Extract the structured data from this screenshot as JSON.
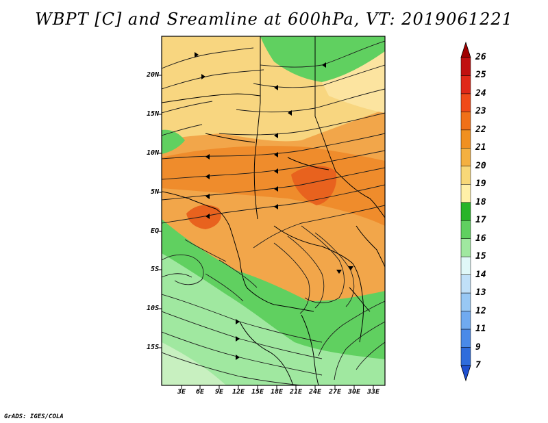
{
  "title": "WBPT [C] and Sreamline at 600hPa, VT: 2019061221",
  "credit": "GrADS: IGES/COLA",
  "lat_labels": [
    "20N",
    "15N",
    "10N",
    "5N",
    "EQ",
    "5S",
    "10S",
    "15S"
  ],
  "lon_labels": [
    "3E",
    "6E",
    "9E",
    "12E",
    "15E",
    "18E",
    "21E",
    "24E",
    "27E",
    "30E",
    "33E"
  ],
  "colorbar": {
    "labels": [
      "26",
      "25",
      "24",
      "23",
      "22",
      "21",
      "20",
      "19",
      "18",
      "17",
      "16",
      "15",
      "14",
      "13",
      "12",
      "11",
      "9",
      "7"
    ],
    "colors": [
      "#a00000",
      "#c01010",
      "#e02818",
      "#f04a18",
      "#f07018",
      "#f09020",
      "#f4b040",
      "#f8d878",
      "#fff0a8",
      "#28b428",
      "#60d060",
      "#a0e8a0",
      "#e0f8f8",
      "#c0e0f8",
      "#98c8f4",
      "#70aaf0",
      "#4a8ae8",
      "#2e6cdc",
      "#1e50d0"
    ]
  }
}
